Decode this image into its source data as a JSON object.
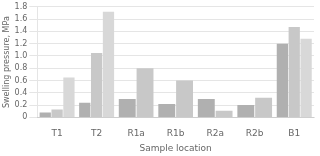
{
  "chart_data": {
    "type": "bar",
    "categories": [
      "T1",
      "T2",
      "R1a",
      "R1b",
      "R2a",
      "R2b",
      "B1"
    ],
    "series": [
      {
        "color": "#b0b0b0",
        "values": [
          0.08,
          0.24,
          0.3,
          0.22,
          0.3,
          0.2,
          1.2
        ]
      },
      {
        "color": "#c8c8c8",
        "values": [
          0.13,
          1.05,
          0.8,
          0.6,
          0.11,
          0.32,
          1.47
        ]
      },
      {
        "color": "#d8d8d8",
        "values": [
          0.65,
          1.72,
          null,
          null,
          null,
          null,
          1.28
        ]
      }
    ],
    "xlabel": "Sample location",
    "ylabel": "Swelling pressure, MPa",
    "ylim": [
      0,
      1.8
    ],
    "yticks": [
      0,
      0.2,
      0.4,
      0.6,
      0.8,
      {
        "value": 1.0,
        "label": "1.0"
      },
      1.2,
      1.4,
      1.6,
      1.8
    ],
    "grid": "y"
  }
}
